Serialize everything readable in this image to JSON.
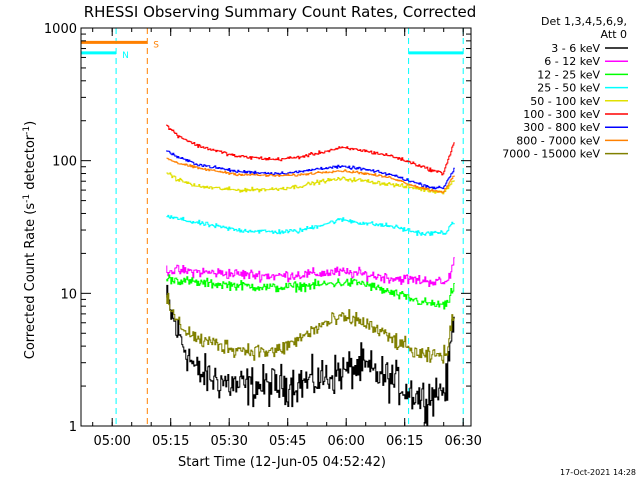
{
  "chart_data": {
    "type": "line",
    "title": "RHESSI Observing Summary Count Rates, Corrected",
    "xlabel": "Start Time (12-Jun-05 04:52:42)",
    "ylabel_main": "Corrected Count Rate (s",
    "ylabel_sup1": "-1",
    "ylabel_mid": " detector",
    "ylabel_sup2": "-1",
    "ylabel_end": ")",
    "yscale": "log",
    "x_range_min": [
      0,
      100
    ],
    "y_range": [
      1,
      1000
    ],
    "x_ticks": [
      {
        "min": 8,
        "label": "05:00"
      },
      {
        "min": 23,
        "label": "05:15"
      },
      {
        "min": 38,
        "label": "05:30"
      },
      {
        "min": 53,
        "label": "05:45"
      },
      {
        "min": 68,
        "label": "06:00"
      },
      {
        "min": 83,
        "label": "06:15"
      },
      {
        "min": 98,
        "label": "06:30"
      }
    ],
    "y_ticks": [
      {
        "value": 1,
        "label": "1"
      },
      {
        "value": 10,
        "label": "10"
      },
      {
        "value": 100,
        "label": "100"
      },
      {
        "value": 1000,
        "label": "1000"
      }
    ],
    "detector_info": [
      "Det 1,3,4,5,6,9,",
      "Att 0"
    ],
    "footer_date": "17-Oct-2021 14:28",
    "series": [
      {
        "name": "3 - 6 keV",
        "color": "#000000",
        "noise": 0.3,
        "start": 22,
        "end": 96,
        "profile": [
          [
            22,
            9
          ],
          [
            25,
            5
          ],
          [
            30,
            2.5
          ],
          [
            40,
            2
          ],
          [
            50,
            2
          ],
          [
            60,
            2.2
          ],
          [
            66,
            2.5
          ],
          [
            72,
            2.8
          ],
          [
            80,
            2.2
          ],
          [
            88,
            1.6
          ],
          [
            94,
            2
          ],
          [
            96,
            9
          ]
        ]
      },
      {
        "name": "6 - 12 keV",
        "color": "#ff00ff",
        "noise": 0.08,
        "start": 22,
        "end": 96,
        "profile": [
          [
            22,
            15
          ],
          [
            30,
            14.5
          ],
          [
            40,
            14
          ],
          [
            50,
            13.5
          ],
          [
            60,
            14
          ],
          [
            66,
            14.5
          ],
          [
            72,
            14
          ],
          [
            80,
            13
          ],
          [
            88,
            12.5
          ],
          [
            94,
            12
          ],
          [
            96,
            18
          ]
        ]
      },
      {
        "name": "12 - 25 keV",
        "color": "#00ff00",
        "noise": 0.07,
        "start": 22,
        "end": 96,
        "profile": [
          [
            22,
            13
          ],
          [
            30,
            12
          ],
          [
            40,
            11.5
          ],
          [
            50,
            11
          ],
          [
            60,
            11.5
          ],
          [
            66,
            12
          ],
          [
            72,
            12
          ],
          [
            80,
            10
          ],
          [
            88,
            8.5
          ],
          [
            94,
            8
          ],
          [
            96,
            12
          ]
        ]
      },
      {
        "name": "25 - 50 keV",
        "color": "#00ffff",
        "noise": 0.035,
        "start": 22,
        "end": 96,
        "profile": [
          [
            22,
            38
          ],
          [
            30,
            34
          ],
          [
            40,
            30
          ],
          [
            50,
            29
          ],
          [
            56,
            29.5
          ],
          [
            62,
            33
          ],
          [
            67,
            36
          ],
          [
            72,
            34
          ],
          [
            80,
            32
          ],
          [
            88,
            28
          ],
          [
            94,
            29
          ],
          [
            96,
            35
          ]
        ]
      },
      {
        "name": "50 - 100 keV",
        "color": "#e0e000",
        "noise": 0.03,
        "start": 22,
        "end": 96,
        "profile": [
          [
            22,
            82
          ],
          [
            25,
            72
          ],
          [
            30,
            64
          ],
          [
            40,
            60
          ],
          [
            50,
            61
          ],
          [
            56,
            64
          ],
          [
            62,
            70
          ],
          [
            67,
            73
          ],
          [
            72,
            71
          ],
          [
            80,
            66
          ],
          [
            86,
            62
          ],
          [
            90,
            59
          ],
          [
            93,
            58
          ],
          [
            96,
            72
          ]
        ]
      },
      {
        "name": "100 - 300 keV",
        "color": "#ff0000",
        "noise": 0.025,
        "start": 22,
        "end": 96,
        "profile": [
          [
            22,
            185
          ],
          [
            25,
            155
          ],
          [
            30,
            130
          ],
          [
            40,
            108
          ],
          [
            50,
            102
          ],
          [
            56,
            106
          ],
          [
            62,
            116
          ],
          [
            67,
            125
          ],
          [
            72,
            120
          ],
          [
            80,
            108
          ],
          [
            86,
            94
          ],
          [
            90,
            85
          ],
          [
            93,
            80
          ],
          [
            96,
            140
          ]
        ]
      },
      {
        "name": "300 - 800 keV",
        "color": "#0000ff",
        "noise": 0.022,
        "start": 22,
        "end": 96,
        "profile": [
          [
            22,
            120
          ],
          [
            25,
            106
          ],
          [
            30,
            94
          ],
          [
            40,
            83
          ],
          [
            50,
            80
          ],
          [
            56,
            82
          ],
          [
            62,
            88
          ],
          [
            67,
            90
          ],
          [
            72,
            87
          ],
          [
            80,
            78
          ],
          [
            86,
            68
          ],
          [
            90,
            63
          ],
          [
            93,
            62
          ],
          [
            96,
            88
          ]
        ]
      },
      {
        "name": "800 - 7000 keV",
        "color": "#ff8000",
        "noise": 0.018,
        "start": 22,
        "end": 96,
        "profile": [
          [
            22,
            105
          ],
          [
            25,
            96
          ],
          [
            30,
            88
          ],
          [
            40,
            79
          ],
          [
            50,
            77
          ],
          [
            56,
            78
          ],
          [
            62,
            82
          ],
          [
            67,
            84
          ],
          [
            72,
            81
          ],
          [
            80,
            74
          ],
          [
            86,
            64
          ],
          [
            90,
            60
          ],
          [
            93,
            58
          ],
          [
            96,
            78
          ]
        ]
      },
      {
        "name": "7000 - 15000 keV",
        "color": "#808000",
        "noise": 0.12,
        "start": 22,
        "end": 96,
        "profile": [
          [
            22,
            9
          ],
          [
            25,
            6
          ],
          [
            30,
            4.5
          ],
          [
            40,
            3.8
          ],
          [
            50,
            3.6
          ],
          [
            56,
            4.5
          ],
          [
            62,
            5.8
          ],
          [
            67,
            6.5
          ],
          [
            72,
            6.2
          ],
          [
            80,
            4.5
          ],
          [
            88,
            3.3
          ],
          [
            94,
            3.5
          ],
          [
            96,
            8
          ]
        ]
      }
    ],
    "bars": [
      {
        "label": "N",
        "start": -2,
        "end": 9,
        "value": 650,
        "color": "#00ffff"
      },
      {
        "label": "S",
        "start": -2,
        "end": 17,
        "value": 780,
        "color": "#ff8000"
      },
      {
        "label": "",
        "start": 84,
        "end": 98,
        "value": 650,
        "color": "#00ffff"
      }
    ],
    "vlines": [
      {
        "min": 9,
        "color": "#00ffff"
      },
      {
        "min": 17,
        "color": "#ff8000"
      },
      {
        "min": 84,
        "color": "#00ffff"
      },
      {
        "min": 98,
        "color": "#00ffff"
      }
    ]
  }
}
